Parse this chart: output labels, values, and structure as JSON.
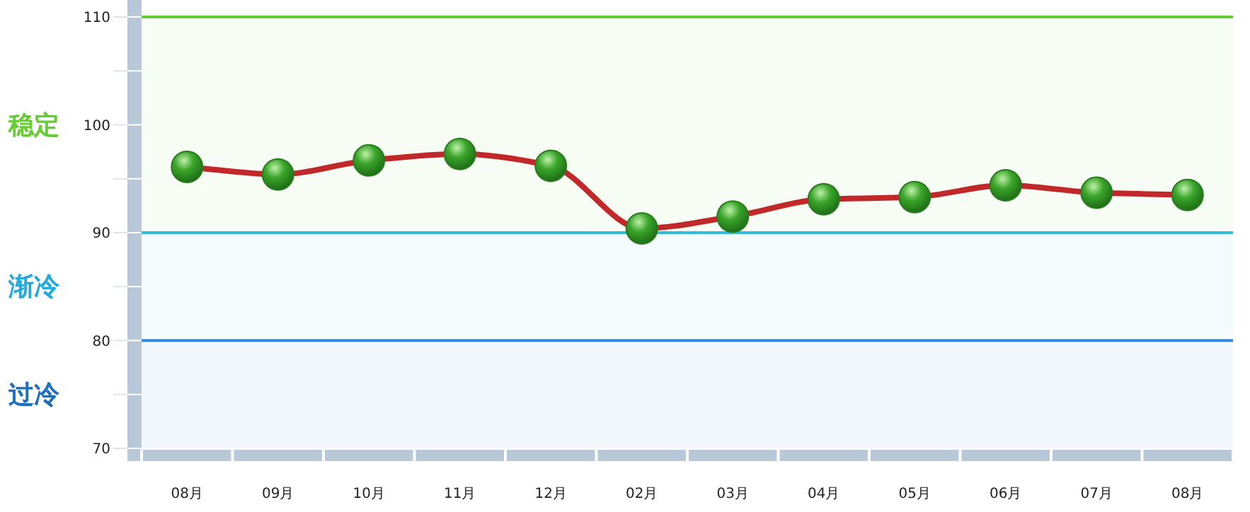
{
  "chart_data": {
    "type": "line",
    "categories": [
      "08月",
      "09月",
      "10月",
      "11月",
      "12月",
      "02月",
      "03月",
      "04月",
      "05月",
      "06月",
      "07月",
      "08月"
    ],
    "series": [
      {
        "color": "#c0282a",
        "values": [
          96.1,
          95.4,
          96.7,
          97.3,
          96.2,
          90.4,
          91.5,
          93.1,
          93.3,
          94.4,
          93.7,
          93.5
        ]
      }
    ],
    "marker": "circle",
    "line_style": "solid",
    "ylim": [
      70,
      110
    ],
    "yticks": [
      70,
      {
        "value": 75,
        "label": null
      },
      80,
      {
        "value": 85,
        "label": null
      },
      90,
      {
        "value": 95,
        "label": null
      },
      100,
      {
        "value": 105,
        "label": null
      },
      110
    ],
    "ref_lines": [
      {
        "axis": "y",
        "value": 110,
        "color": "#66cc33"
      },
      {
        "axis": "y",
        "value": 90,
        "color": "#33bbdd"
      },
      {
        "axis": "y",
        "value": 80,
        "color": "#3388dd"
      }
    ],
    "bands": [
      {
        "axis": "y",
        "from": 90,
        "to": 110,
        "label": "稳定",
        "color": "#66cc33"
      },
      {
        "axis": "y",
        "from": 80,
        "to": 90,
        "label": "渐冷",
        "color": "#22aadd"
      },
      {
        "axis": "y",
        "from": 70,
        "to": 80,
        "label": "过冷",
        "color": "#1a6fbf"
      }
    ],
    "grid": false
  }
}
